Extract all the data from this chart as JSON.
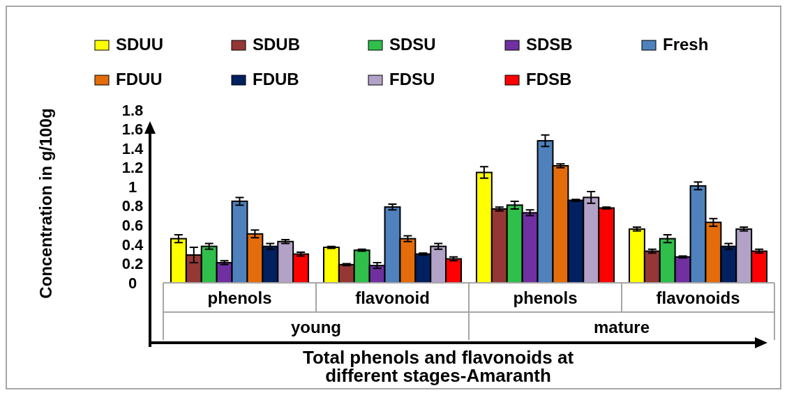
{
  "chart_data": {
    "type": "bar",
    "xlabel": "Total phenols and flavonoids at different stages-Amaranth",
    "ylabel": "Concentration in g/100g",
    "categories": [
      "phenols",
      "flavonoid",
      "phenols",
      "flavonoids"
    ],
    "annotations": [
      "young",
      "mature"
    ],
    "ylim": [
      0,
      1.8
    ],
    "yticks": [
      0,
      0.2,
      0.4,
      0.6,
      0.8,
      1,
      1.2,
      1.4,
      1.6,
      1.8
    ],
    "grid": false,
    "legend": "top",
    "series": [
      {
        "name": "SDUU",
        "color": "#ffff00",
        "values": [
          0.46,
          0.37,
          1.15,
          0.56
        ],
        "errors": [
          0.04,
          0.01,
          0.06,
          0.02
        ]
      },
      {
        "name": "SDUB",
        "color": "#953735",
        "values": [
          0.29,
          0.19,
          0.77,
          0.33
        ],
        "errors": [
          0.08,
          0.01,
          0.02,
          0.02
        ]
      },
      {
        "name": "SDSU",
        "color": "#2fbf4a",
        "values": [
          0.38,
          0.34,
          0.81,
          0.46
        ],
        "errors": [
          0.03,
          0.01,
          0.04,
          0.04
        ]
      },
      {
        "name": "SDSB",
        "color": "#7030a0",
        "values": [
          0.21,
          0.18,
          0.73,
          0.27
        ],
        "errors": [
          0.02,
          0.03,
          0.03,
          0.01
        ]
      },
      {
        "name": "Fresh",
        "color": "#4f81bd",
        "values": [
          0.85,
          0.79,
          1.48,
          1.01
        ],
        "errors": [
          0.04,
          0.03,
          0.06,
          0.04
        ]
      },
      {
        "name": "FDUU",
        "color": "#e46c0a",
        "values": [
          0.51,
          0.46,
          1.22,
          0.63
        ],
        "errors": [
          0.04,
          0.03,
          0.02,
          0.04
        ]
      },
      {
        "name": "FDUB",
        "color": "#002060",
        "values": [
          0.38,
          0.3,
          0.86,
          0.38
        ],
        "errors": [
          0.03,
          0.01,
          0.01,
          0.03
        ]
      },
      {
        "name": "FDSU",
        "color": "#b3a2c7",
        "values": [
          0.43,
          0.38,
          0.89,
          0.56
        ],
        "errors": [
          0.02,
          0.03,
          0.06,
          0.02
        ]
      },
      {
        "name": "FDSB",
        "color": "#ff0000",
        "values": [
          0.3,
          0.25,
          0.78,
          0.33
        ],
        "errors": [
          0.02,
          0.02,
          0.01,
          0.02
        ]
      }
    ]
  }
}
